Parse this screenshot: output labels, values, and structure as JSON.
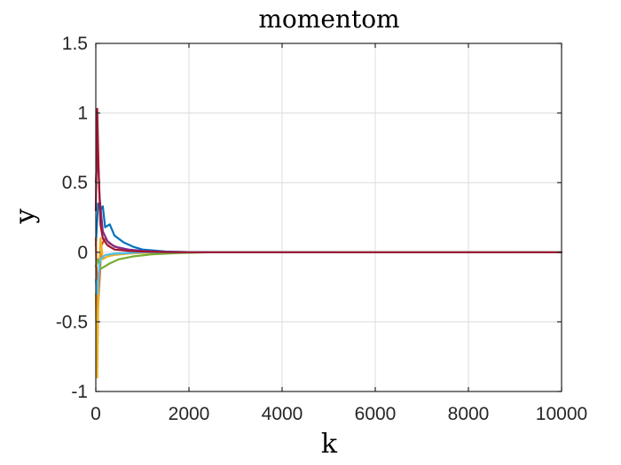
{
  "chart_data": {
    "type": "line",
    "title": "momentom",
    "xlabel": "k",
    "ylabel": "y",
    "xlim": [
      0,
      10000
    ],
    "ylim": [
      -1,
      1.5
    ],
    "x_ticks": [
      0,
      2000,
      4000,
      6000,
      8000,
      10000
    ],
    "x_tick_labels": [
      "0",
      "2000",
      "4000",
      "6000",
      "8000",
      "10000"
    ],
    "y_ticks": [
      -1,
      -0.5,
      0,
      0.5,
      1,
      1.5
    ],
    "y_tick_labels": [
      "-1",
      "-0.5",
      "0",
      "0.5",
      "1",
      "1.5"
    ],
    "grid": true,
    "legend": false,
    "series_colors": [
      "#0072BD",
      "#D95319",
      "#EDB120",
      "#7E2F8E",
      "#77AC30",
      "#4DBEEE",
      "#A2142F"
    ],
    "series": [
      {
        "x": [
          0,
          50,
          100,
          150,
          200,
          300,
          400,
          600,
          800,
          1000,
          1500,
          2000,
          3000,
          10000
        ],
        "values": [
          0.05,
          0.35,
          0.3,
          0.33,
          0.18,
          0.2,
          0.12,
          0.07,
          0.04,
          0.02,
          0.005,
          0.001,
          0,
          0
        ]
      },
      {
        "x": [
          0,
          40,
          80,
          120,
          200,
          300,
          500,
          800,
          1200,
          2000,
          10000
        ],
        "values": [
          0.1,
          -0.45,
          -0.2,
          0.05,
          0.1,
          0.06,
          0.03,
          0.01,
          0.003,
          0,
          0
        ]
      },
      {
        "x": [
          0,
          30,
          60,
          100,
          150,
          250,
          400,
          700,
          1000,
          1500,
          2000,
          10000
        ],
        "values": [
          -0.3,
          -0.9,
          -0.2,
          0.1,
          -0.05,
          -0.03,
          -0.02,
          -0.01,
          -0.005,
          -0.001,
          0,
          0
        ]
      },
      {
        "x": [
          0,
          40,
          80,
          150,
          250,
          400,
          700,
          1000,
          1500,
          2000,
          10000
        ],
        "values": [
          0.5,
          0.75,
          0.4,
          0.15,
          0.08,
          0.04,
          0.02,
          0.01,
          0.003,
          0.001,
          0
        ]
      },
      {
        "x": [
          0,
          50,
          100,
          200,
          300,
          500,
          800,
          1200,
          1800,
          2500,
          10000
        ],
        "values": [
          -0.1,
          -0.05,
          -0.12,
          -0.1,
          -0.08,
          -0.05,
          -0.03,
          -0.015,
          -0.005,
          0,
          0
        ]
      },
      {
        "x": [
          0,
          30,
          60,
          100,
          200,
          400,
          700,
          1000,
          1500,
          2000,
          3000,
          10000
        ],
        "values": [
          -0.2,
          -0.3,
          -0.15,
          -0.05,
          -0.02,
          -0.01,
          -0.005,
          0,
          0,
          0,
          0,
          0
        ]
      },
      {
        "x": [
          0,
          30,
          60,
          100,
          150,
          250,
          400,
          700,
          1000,
          1500,
          2000,
          10000
        ],
        "values": [
          0.3,
          1.03,
          0.6,
          0.2,
          0.1,
          0.05,
          0.02,
          0.01,
          0.005,
          0.001,
          0,
          0
        ]
      }
    ]
  }
}
